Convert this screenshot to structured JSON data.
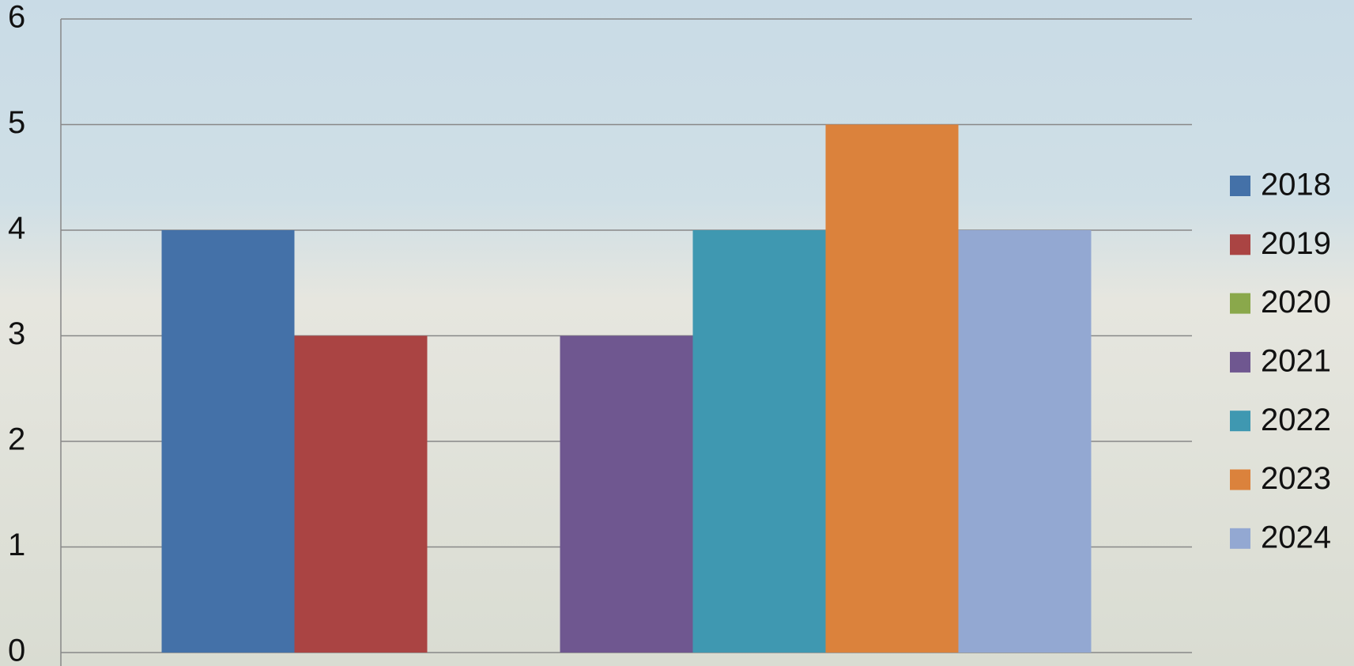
{
  "chart_data": {
    "type": "bar",
    "categories": [
      null
    ],
    "series": [
      {
        "name": "2018",
        "color": "#4471a8",
        "values": [
          4
        ]
      },
      {
        "name": "2019",
        "color": "#aa4443",
        "values": [
          3
        ]
      },
      {
        "name": "2020",
        "color": "#8aa84b",
        "values": [
          0
        ]
      },
      {
        "name": "2021",
        "color": "#6f5790",
        "values": [
          3
        ]
      },
      {
        "name": "2022",
        "color": "#3f98b1",
        "values": [
          4
        ]
      },
      {
        "name": "2023",
        "color": "#db823c",
        "values": [
          5
        ]
      },
      {
        "name": "2024",
        "color": "#93a8d2",
        "values": [
          4
        ]
      }
    ],
    "ylim": [
      0,
      6
    ],
    "yticks": [
      0,
      1,
      2,
      3,
      4,
      5,
      6
    ],
    "grid": true,
    "legend": "right"
  }
}
